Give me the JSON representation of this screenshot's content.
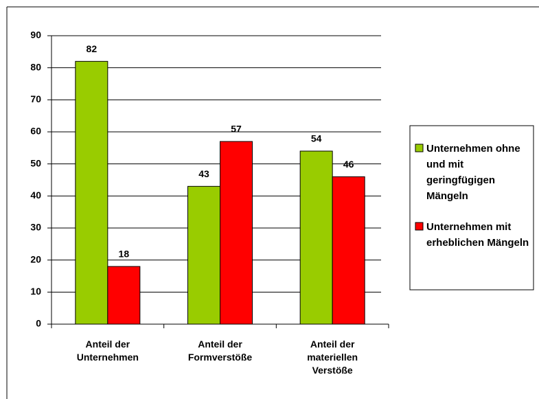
{
  "chart_data": {
    "type": "bar",
    "categories": [
      "Anteil der Unternehmen",
      "Anteil der Formverstöße",
      "Anteil der materiellen Verstöße"
    ],
    "series": [
      {
        "name": "Unternehmen ohne und mit geringfügigen Mängeln",
        "color": "#99cc00",
        "values": [
          82,
          43,
          54
        ]
      },
      {
        "name": "Unternehmen mit erheblichen Mängeln",
        "color": "#ff0000",
        "values": [
          18,
          57,
          46
        ]
      }
    ],
    "ylim": [
      0,
      90
    ],
    "yticks": [
      0,
      10,
      20,
      30,
      40,
      50,
      60,
      70,
      80,
      90
    ],
    "grid": true,
    "legend": "right"
  }
}
